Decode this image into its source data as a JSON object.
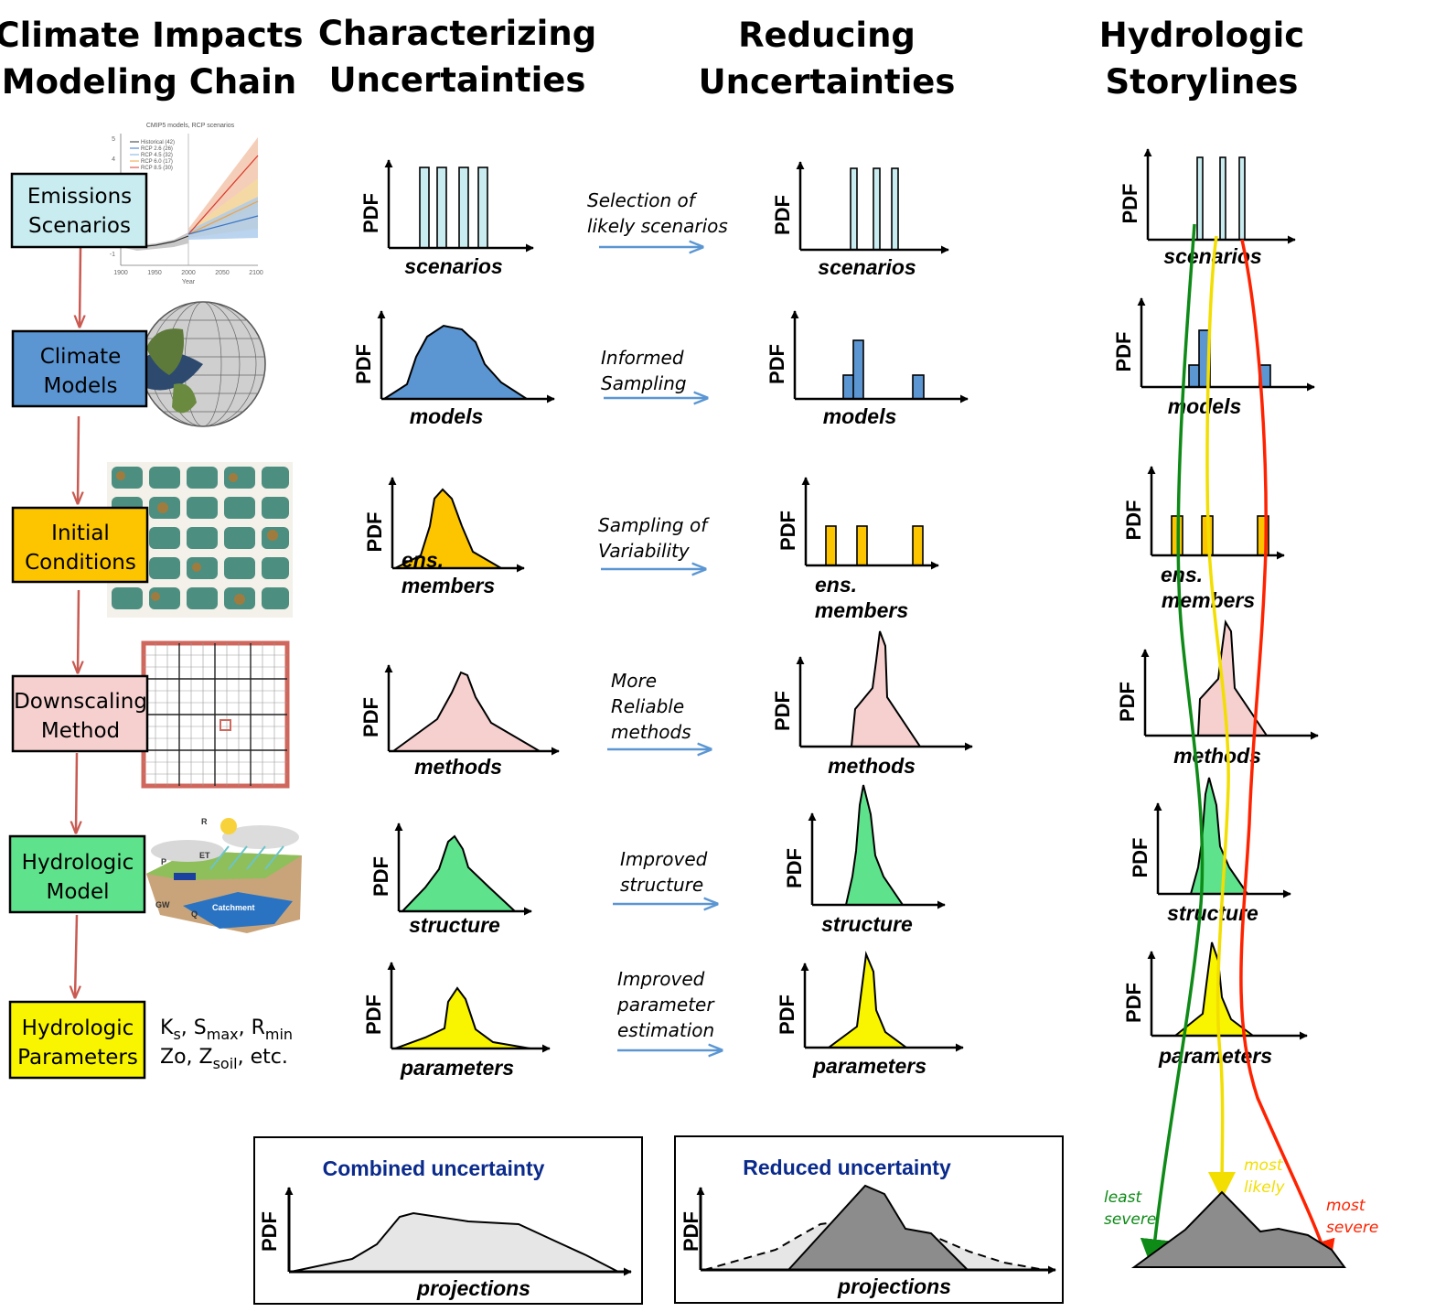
{
  "headers": {
    "chain": [
      "Climate Impacts",
      "Modeling Chain"
    ],
    "characterizing": [
      "Characterizing",
      "Uncertainties"
    ],
    "reducing": [
      "Reducing",
      "Uncertainties"
    ],
    "storylines": [
      "Hydrologic",
      "Storylines"
    ]
  },
  "chain_boxes": [
    {
      "lines": [
        "Emissions",
        "Scenarios"
      ],
      "color": "#c9ecf0"
    },
    {
      "lines": [
        "Climate",
        "Models"
      ],
      "color": "#5b96d3"
    },
    {
      "lines": [
        "Initial",
        "Conditions"
      ],
      "color": "#fcc500"
    },
    {
      "lines": [
        "Downscaling",
        "Method"
      ],
      "color": "#f5d0cf"
    },
    {
      "lines": [
        "Hydrologic",
        "Model"
      ],
      "color": "#5ee38c"
    },
    {
      "lines": [
        "Hydrologic",
        "Parameters"
      ],
      "color": "#f9f500"
    }
  ],
  "params_note": {
    "line1": [
      {
        "t": "K"
      },
      {
        "t": "s",
        "sub": true
      },
      {
        "t": ", S"
      },
      {
        "t": "max",
        "sub": true
      },
      {
        "t": ", R"
      },
      {
        "t": "min",
        "sub": true
      }
    ],
    "line2": [
      {
        "t": "Zo, Z"
      },
      {
        "t": "soil",
        "sub": true
      },
      {
        "t": ", etc."
      }
    ]
  },
  "emissions_inset": {
    "title": "CMIP5 models, RCP scenarios",
    "legend": [
      "Historical (42)",
      "RCP 2.6 (26)",
      "RCP 4.5 (32)",
      "RCP 6.0 (17)",
      "RCP 8.5 (30)"
    ],
    "x_ticks": [
      "1900",
      "1950",
      "2000",
      "2050",
      "2100"
    ],
    "y_ticks": [
      "5",
      "4",
      "",
      "",
      "-1"
    ],
    "xlabel": "Year",
    "ylabel": "°C"
  },
  "hydro_inset_labels": [
    "R",
    "P",
    "ET",
    "GW",
    "Catchment",
    "Q"
  ],
  "pdf_label": "PDF",
  "axis_labels": {
    "scenarios": [
      "scenarios"
    ],
    "models": [
      "models"
    ],
    "members": [
      "ens.",
      "members"
    ],
    "methods": [
      "methods"
    ],
    "structure": [
      "structure"
    ],
    "parameters": [
      "parameters"
    ]
  },
  "reduction_arrows": [
    [
      "Selection of",
      "likely scenarios"
    ],
    [
      "Informed",
      "Sampling"
    ],
    [
      "Sampling of",
      "Variability"
    ],
    [
      "More",
      "Reliable",
      "methods"
    ],
    [
      "Improved",
      "structure"
    ],
    [
      "Improved",
      "parameter",
      "estimation"
    ]
  ],
  "panels": {
    "combined": {
      "title": "Combined uncertainty",
      "xlabel": "projections",
      "ylabel": "PDF"
    },
    "reduced": {
      "title": "Reduced uncertainty",
      "xlabel": "projections",
      "ylabel": "PDF"
    }
  },
  "severity": {
    "least": {
      "lines": [
        "least",
        "severe"
      ],
      "color": "#0e8a17"
    },
    "likely": {
      "lines": [
        "most",
        "likely"
      ],
      "color": "#f2de00"
    },
    "most": {
      "lines": [
        "most",
        "severe"
      ],
      "color": "#ff2200"
    }
  },
  "colors": {
    "scenarios": "#c9ecf0",
    "models": "#5b96d3",
    "members": "#fcc500",
    "methods": "#f5d0cf",
    "structure": "#5ee38c",
    "parameters": "#f9f500",
    "chain_arrow": "#c95a52",
    "reduction_arrow": "#5b96d3",
    "combined_fill": "#e6e6e6",
    "reduced_fill": "#8c8c8c"
  }
}
